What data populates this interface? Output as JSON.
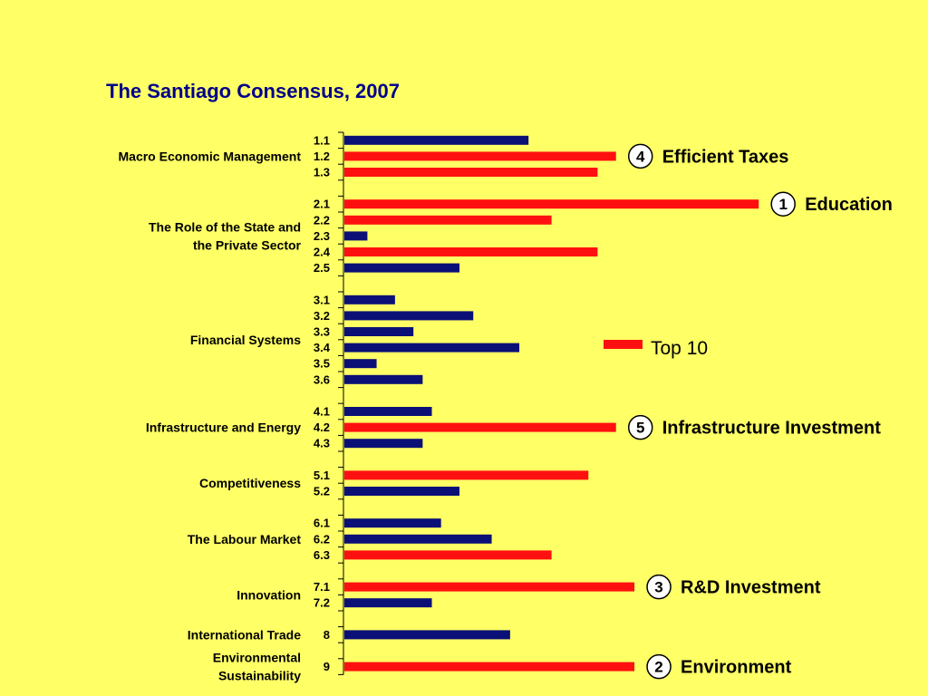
{
  "colors": {
    "background": "#FFFF66",
    "top10": "#FF1010",
    "other": "#0B1077",
    "title": "#00008B"
  },
  "chart_data": {
    "type": "bar",
    "orientation": "horizontal",
    "title": "The Santiago Consensus, 2007",
    "xlim": [
      0,
      100
    ],
    "legend": {
      "label": "Top 10",
      "placement": "right"
    },
    "groups": [
      {
        "label": "Macro Economic Management",
        "bars": [
          {
            "category": "1.1",
            "value": 40,
            "top10": false
          },
          {
            "category": "1.2",
            "value": 59,
            "top10": true
          },
          {
            "category": "1.3",
            "value": 55,
            "top10": true
          }
        ]
      },
      {
        "label": "The Role of the State and the Private Sector",
        "bars": [
          {
            "category": "2.1",
            "value": 90,
            "top10": true
          },
          {
            "category": "2.2",
            "value": 45,
            "top10": true
          },
          {
            "category": "2.3",
            "value": 5,
            "top10": false
          },
          {
            "category": "2.4",
            "value": 55,
            "top10": true
          },
          {
            "category": "2.5",
            "value": 25,
            "top10": false
          }
        ]
      },
      {
        "label": "Financial Systems",
        "bars": [
          {
            "category": "3.1",
            "value": 11,
            "top10": false
          },
          {
            "category": "3.2",
            "value": 28,
            "top10": false
          },
          {
            "category": "3.3",
            "value": 15,
            "top10": false
          },
          {
            "category": "3.4",
            "value": 38,
            "top10": false
          },
          {
            "category": "3.5",
            "value": 7,
            "top10": false
          },
          {
            "category": "3.6",
            "value": 17,
            "top10": false
          }
        ]
      },
      {
        "label": "Infrastructure and Energy",
        "bars": [
          {
            "category": "4.1",
            "value": 19,
            "top10": false
          },
          {
            "category": "4.2",
            "value": 59,
            "top10": true
          },
          {
            "category": "4.3",
            "value": 17,
            "top10": false
          }
        ]
      },
      {
        "label": "Competitiveness",
        "bars": [
          {
            "category": "5.1",
            "value": 53,
            "top10": true
          },
          {
            "category": "5.2",
            "value": 25,
            "top10": false
          }
        ]
      },
      {
        "label": "The Labour Market",
        "bars": [
          {
            "category": "6.1",
            "value": 21,
            "top10": false
          },
          {
            "category": "6.2",
            "value": 32,
            "top10": false
          },
          {
            "category": "6.3",
            "value": 45,
            "top10": true
          }
        ]
      },
      {
        "label": "Innovation",
        "bars": [
          {
            "category": "7.1",
            "value": 63,
            "top10": true
          },
          {
            "category": "7.2",
            "value": 19,
            "top10": false
          }
        ]
      },
      {
        "label": "International Trade",
        "bars": [
          {
            "category": "8",
            "value": 36,
            "top10": false
          }
        ]
      },
      {
        "label": "Environmental Sustainability",
        "bars": [
          {
            "category": "9",
            "value": 63,
            "top10": true
          }
        ]
      }
    ],
    "annotations": [
      {
        "category": "2.1",
        "rank": "1",
        "text": "Education"
      },
      {
        "category": "9",
        "rank": "2",
        "text": "Environment"
      },
      {
        "category": "7.1",
        "rank": "3",
        "text": "R&D Investment"
      },
      {
        "category": "1.2",
        "rank": "4",
        "text": "Efficient Taxes"
      },
      {
        "category": "4.2",
        "rank": "5",
        "text": "Infrastructure Investment"
      }
    ]
  }
}
